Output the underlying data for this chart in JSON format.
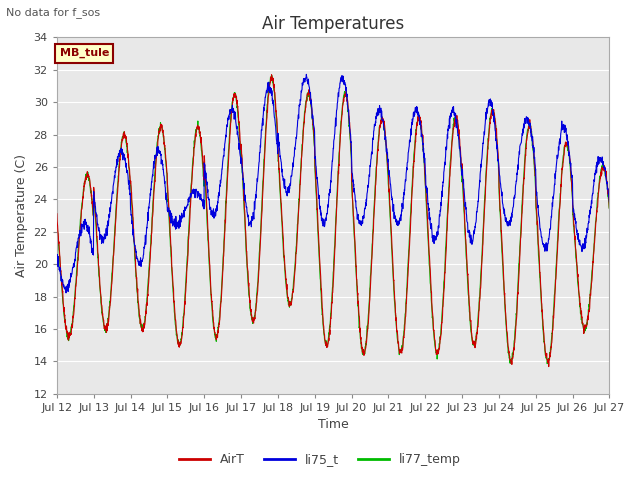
{
  "title": "Air Temperatures",
  "top_left_text": "No data for f_sos",
  "xlabel": "Time",
  "ylabel": "Air Temperature (C)",
  "ylim": [
    12,
    34
  ],
  "x_tick_labels": [
    "Jul 12",
    "Jul 13",
    "Jul 14",
    "Jul 15",
    "Jul 16",
    "Jul 17",
    "Jul 18",
    "Jul 19",
    "Jul 20",
    "Jul 21",
    "Jul 22",
    "Jul 23",
    "Jul 24",
    "Jul 25",
    "Jul 26",
    "Jul 27"
  ],
  "legend_box_label": "MB_tule",
  "legend_box_facecolor": "#ffffc8",
  "legend_box_edgecolor": "#8b0000",
  "line_colors": {
    "AirT": "#cc0000",
    "li75_t": "#0000dd",
    "li77_temp": "#00bb00"
  },
  "bg_color": "#e8e8e8",
  "title_fontsize": 12,
  "axis_label_fontsize": 9,
  "tick_fontsize": 8,
  "legend_fontsize": 9
}
